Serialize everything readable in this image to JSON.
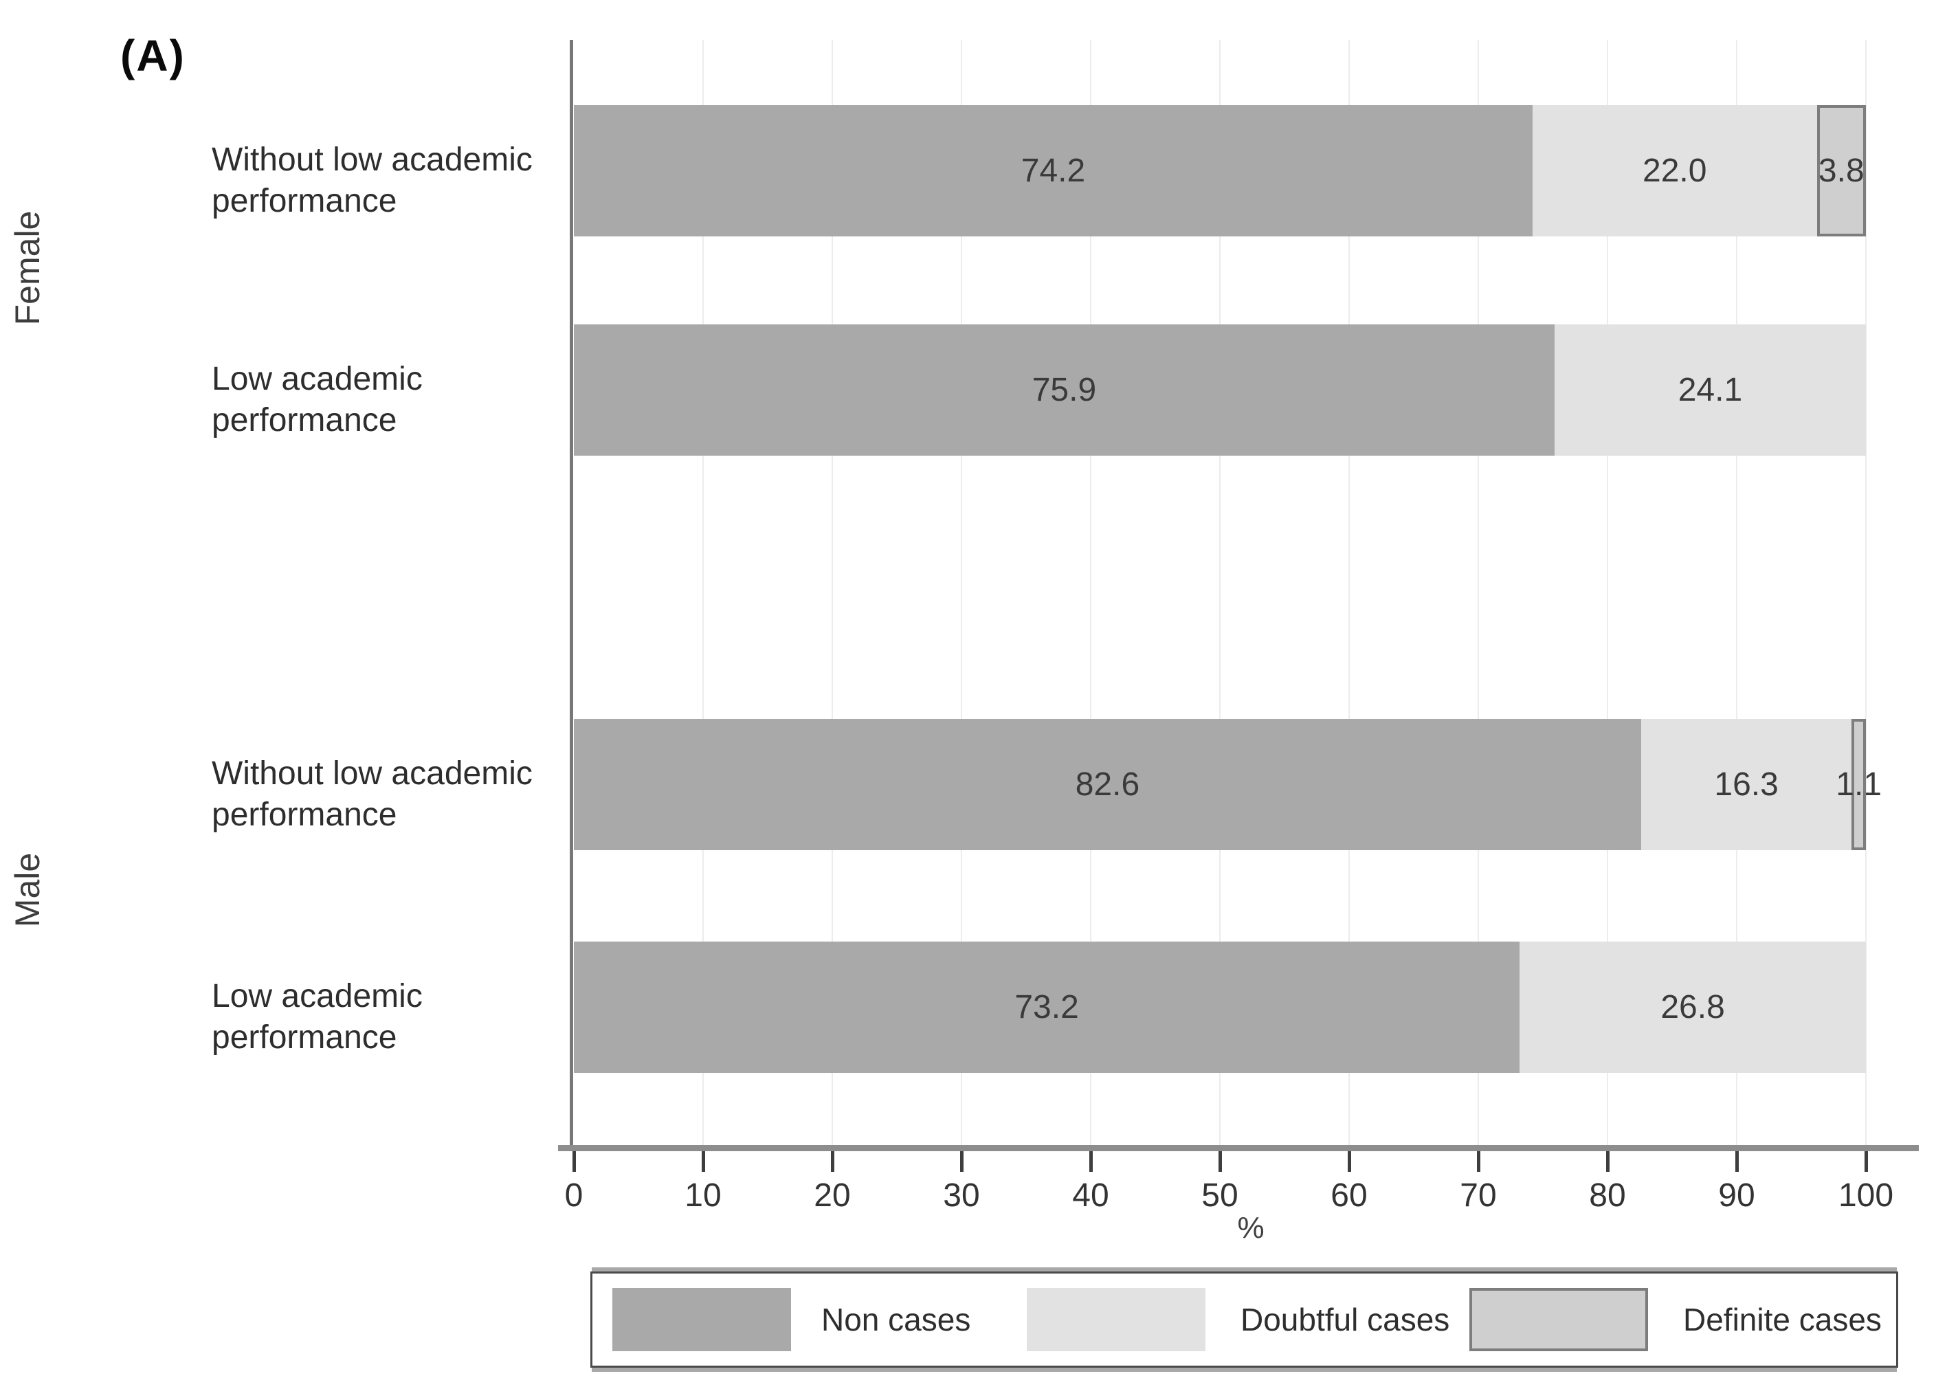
{
  "panel_label": "(A)",
  "groups": [
    {
      "name": "Female"
    },
    {
      "name": "Male"
    }
  ],
  "axis": {
    "label": "%",
    "ticks": [
      0,
      10,
      20,
      30,
      40,
      50,
      60,
      70,
      80,
      90,
      100
    ]
  },
  "legend": {
    "items": [
      {
        "label": "Non cases",
        "fill": "#a9a9a9",
        "border": "#a9a9a9"
      },
      {
        "label": "Doubtful cases",
        "fill": "#e2e2e2",
        "border": "#e2e2e2"
      },
      {
        "label": "Definite cases",
        "fill": "#cfcfcf",
        "border": "#7d7d7d"
      }
    ]
  },
  "chart_data": {
    "type": "bar",
    "orientation": "horizontal",
    "stacked": true,
    "title": "(A)",
    "xlabel": "%",
    "xlim": [
      0,
      100
    ],
    "x_ticks": [
      0,
      10,
      20,
      30,
      40,
      50,
      60,
      70,
      80,
      90,
      100
    ],
    "grid": true,
    "legend_position": "bottom",
    "series": [
      "Non cases",
      "Doubtful cases",
      "Definite cases"
    ],
    "rows": [
      {
        "group": "Female",
        "category": "Without low academic performance",
        "label_lines": [
          "Without low academic",
          "performance"
        ],
        "values": [
          74.2,
          22.0,
          3.8
        ]
      },
      {
        "group": "Female",
        "category": "Low academic performance",
        "label_lines": [
          "Low academic",
          "performance"
        ],
        "values": [
          75.9,
          24.1,
          0
        ]
      },
      {
        "group": "Male",
        "category": "Without low academic performance",
        "label_lines": [
          "Without low academic",
          "performance"
        ],
        "values": [
          82.6,
          16.3,
          1.1
        ]
      },
      {
        "group": "Male",
        "category": "Low academic performance",
        "label_lines": [
          "Low academic",
          "performance"
        ],
        "values": [
          73.2,
          26.8,
          0
        ]
      }
    ]
  }
}
